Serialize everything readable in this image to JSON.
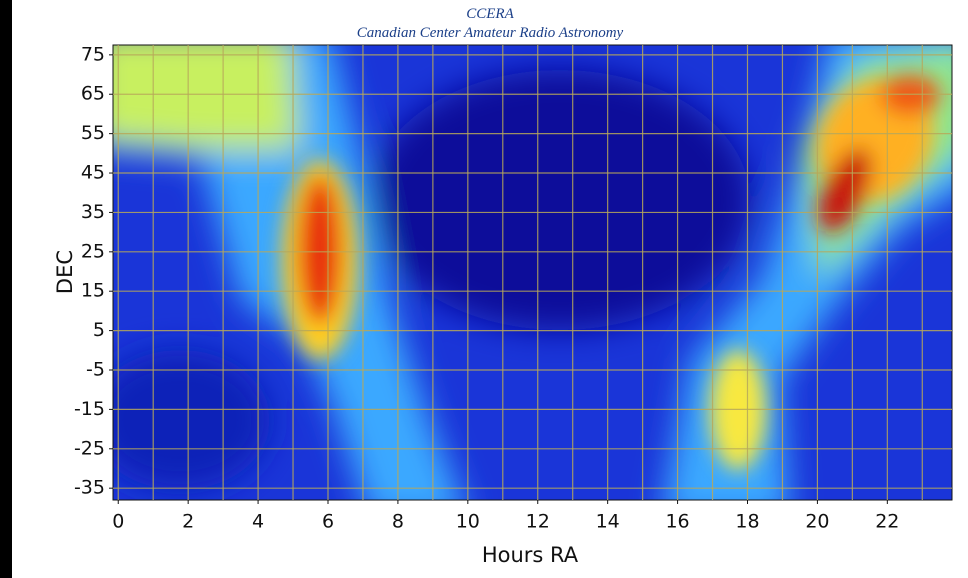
{
  "chart_data": {
    "type": "heatmap",
    "title": "CCERA",
    "subtitle": "Canadian Center Amateur Radio Astronomy",
    "x_label": "Hours RA",
    "y_label": "DEC",
    "xlim": [
      -0.15,
      23.85
    ],
    "ylim": [
      -38,
      77.5
    ],
    "xticks": [
      0,
      2,
      4,
      6,
      8,
      10,
      12,
      14,
      16,
      18,
      20,
      22
    ],
    "xminorticks": [
      1,
      3,
      5,
      7,
      9,
      11,
      13,
      15,
      17,
      19,
      21,
      23
    ],
    "yticks": [
      75,
      65,
      55,
      45,
      35,
      25,
      15,
      5,
      -5,
      -15,
      -25,
      -35
    ],
    "grid": true,
    "grid_color": "#b8a85a"
  }
}
